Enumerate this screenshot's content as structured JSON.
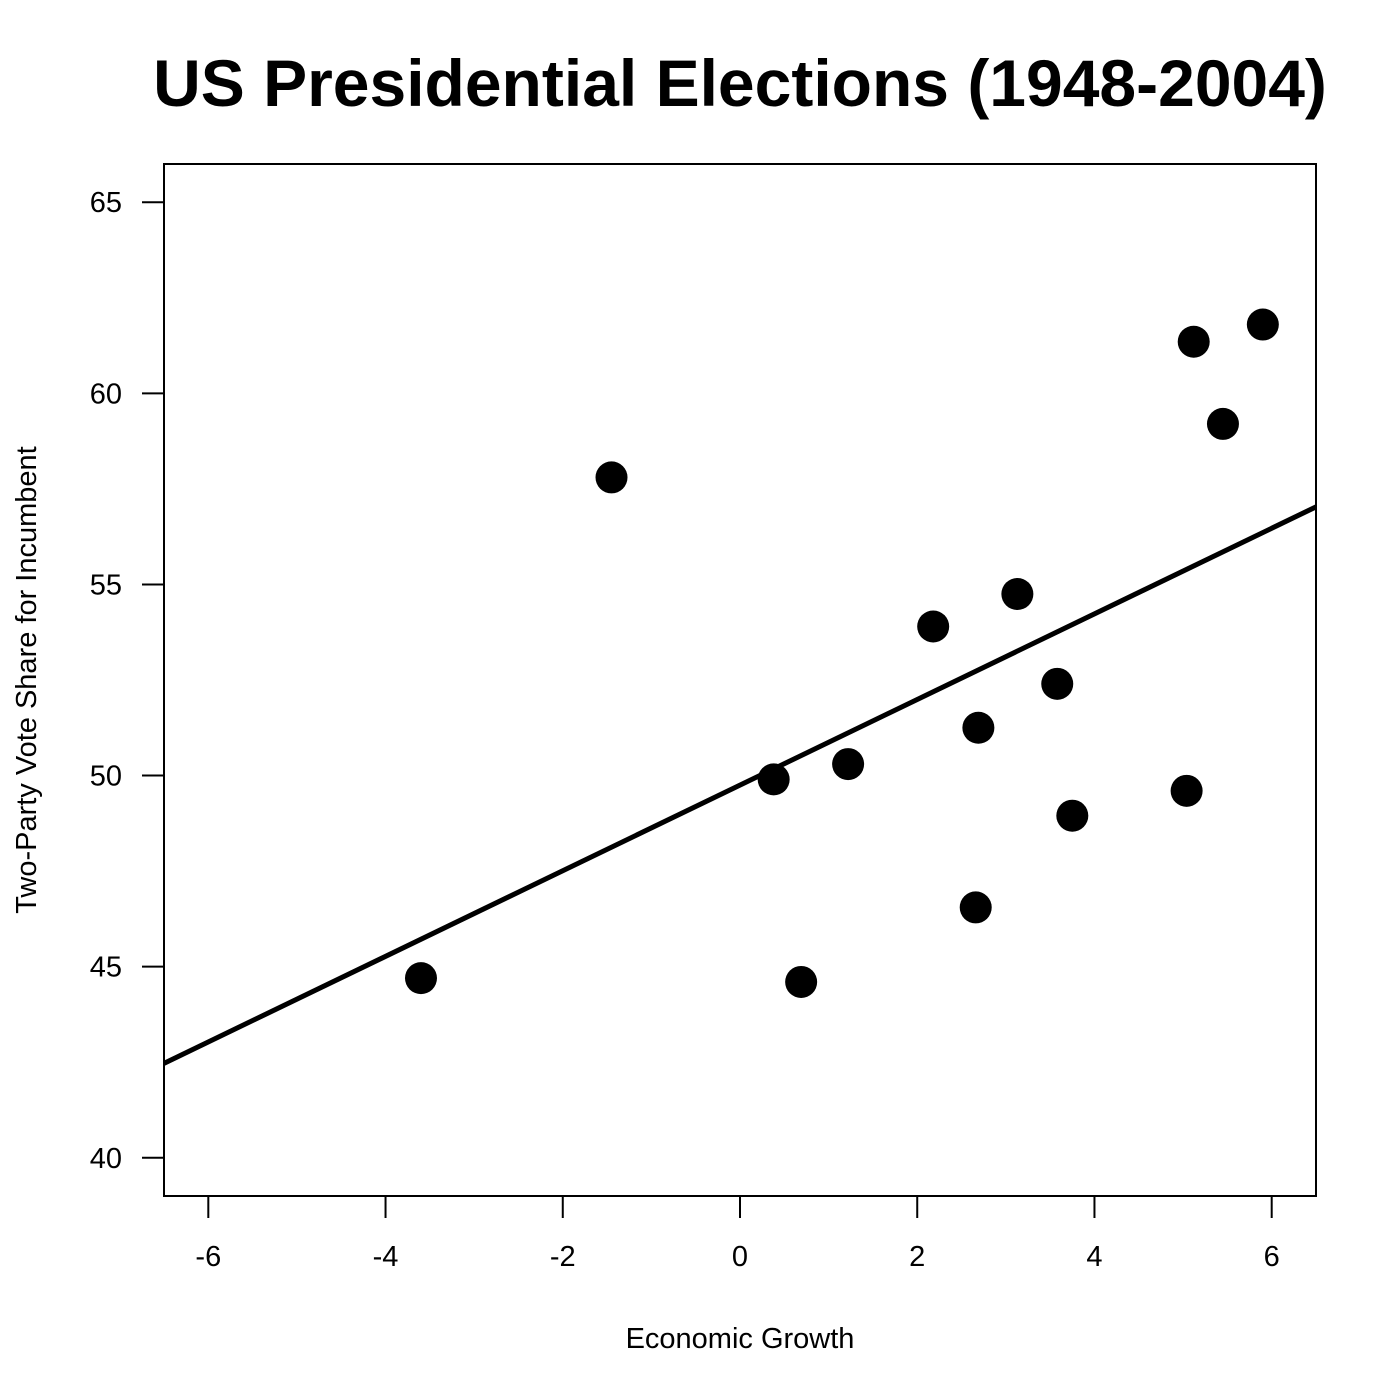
{
  "chart_data": {
    "type": "scatter",
    "title": "US Presidential Elections (1948-2004)",
    "xlabel": "Economic Growth",
    "ylabel": "Two-Party Vote Share for Incumbent",
    "xlim": [
      -6.5,
      6.5
    ],
    "ylim": [
      39,
      66
    ],
    "xticks": [
      -6,
      -4,
      -2,
      0,
      2,
      4,
      6
    ],
    "yticks": [
      40,
      45,
      50,
      55,
      60,
      65
    ],
    "grid": false,
    "points": [
      {
        "x": -3.6,
        "y": 44.7
      },
      {
        "x": -1.45,
        "y": 57.8
      },
      {
        "x": 0.38,
        "y": 49.9
      },
      {
        "x": 0.69,
        "y": 44.6
      },
      {
        "x": 1.22,
        "y": 50.3
      },
      {
        "x": 2.18,
        "y": 53.9
      },
      {
        "x": 2.66,
        "y": 46.55
      },
      {
        "x": 2.69,
        "y": 51.25
      },
      {
        "x": 3.13,
        "y": 54.75
      },
      {
        "x": 3.58,
        "y": 52.4
      },
      {
        "x": 3.75,
        "y": 48.95
      },
      {
        "x": 5.04,
        "y": 49.6
      },
      {
        "x": 5.12,
        "y": 61.35
      },
      {
        "x": 5.45,
        "y": 59.2
      },
      {
        "x": 5.9,
        "y": 61.8
      }
    ],
    "fit_line": {
      "intercept": 49.75,
      "slope": 1.12
    },
    "colors": {
      "points": "#000000",
      "line": "#000000"
    }
  }
}
